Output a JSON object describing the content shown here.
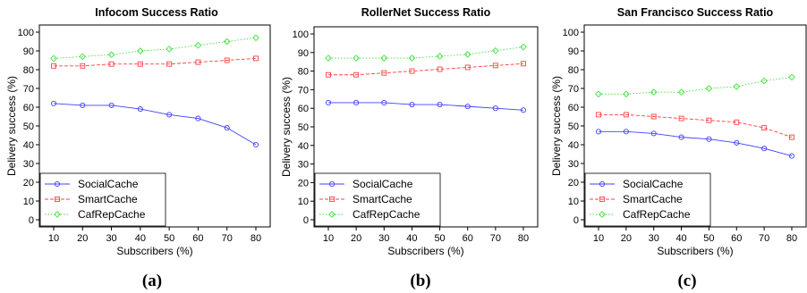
{
  "chart_data": [
    {
      "type": "line",
      "title": "Infocom Success Ratio",
      "caption": "(a)",
      "xlabel": "Subscribers (%)",
      "ylabel": "Delivery success (%)",
      "x": [
        10,
        20,
        30,
        40,
        50,
        60,
        70,
        80
      ],
      "yticks": [
        0,
        10,
        20,
        30,
        40,
        50,
        60,
        70,
        80,
        90,
        100
      ],
      "ylim": [
        0,
        100
      ],
      "legend_position": "bottom-left",
      "series": [
        {
          "name": "SocialCache",
          "color": "#4040ff",
          "marker": "circle",
          "dash": "solid",
          "values": [
            62,
            61,
            61,
            59,
            56,
            54,
            49,
            40
          ]
        },
        {
          "name": "SmartCache",
          "color": "#ff4040",
          "marker": "square",
          "dash": "dashed",
          "values": [
            82,
            82,
            83,
            83,
            83,
            84,
            85,
            86
          ]
        },
        {
          "name": "CafRepCache",
          "color": "#40e040",
          "marker": "diamond",
          "dash": "dotted",
          "values": [
            86,
            87,
            88,
            90,
            91,
            93,
            95,
            97
          ]
        }
      ]
    },
    {
      "type": "line",
      "title": "RollerNet Success Ratio",
      "caption": "(b)",
      "xlabel": "Subscribers (%)",
      "ylabel": "Delivery success (%)",
      "x": [
        10,
        20,
        30,
        40,
        50,
        60,
        70,
        80
      ],
      "yticks": [
        0,
        10,
        20,
        30,
        40,
        50,
        60,
        70,
        80,
        90,
        100
      ],
      "ylim": [
        0,
        100
      ],
      "legend_position": "bottom-left",
      "series": [
        {
          "name": "SocialCache",
          "color": "#4040ff",
          "marker": "circle",
          "dash": "solid",
          "values": [
            63,
            63,
            63,
            62,
            62,
            61,
            60,
            59
          ]
        },
        {
          "name": "SmartCache",
          "color": "#ff4040",
          "marker": "square",
          "dash": "dashed",
          "values": [
            78,
            78,
            79,
            80,
            81,
            82,
            83,
            84
          ]
        },
        {
          "name": "CafRepCache",
          "color": "#40e040",
          "marker": "diamond",
          "dash": "dotted",
          "values": [
            87,
            87,
            87,
            87,
            88,
            89,
            91,
            93
          ]
        }
      ]
    },
    {
      "type": "line",
      "title": "San Francisco Success Ratio",
      "caption": "(c)",
      "xlabel": "Subscribers (%)",
      "ylabel": "Delivery success (%)",
      "x": [
        10,
        20,
        30,
        40,
        50,
        60,
        70,
        80
      ],
      "yticks": [
        0,
        10,
        20,
        30,
        40,
        50,
        60,
        70,
        80,
        90,
        100
      ],
      "ylim": [
        0,
        100
      ],
      "legend_position": "bottom-left",
      "series": [
        {
          "name": "SocialCache",
          "color": "#4040ff",
          "marker": "circle",
          "dash": "solid",
          "values": [
            47,
            47,
            46,
            44,
            43,
            41,
            38,
            34
          ]
        },
        {
          "name": "SmartCache",
          "color": "#ff4040",
          "marker": "square",
          "dash": "dashed",
          "values": [
            56,
            56,
            55,
            54,
            53,
            52,
            49,
            44
          ]
        },
        {
          "name": "CafRepCache",
          "color": "#40e040",
          "marker": "diamond",
          "dash": "dotted",
          "values": [
            67,
            67,
            68,
            68,
            70,
            71,
            74,
            76
          ]
        }
      ]
    }
  ]
}
